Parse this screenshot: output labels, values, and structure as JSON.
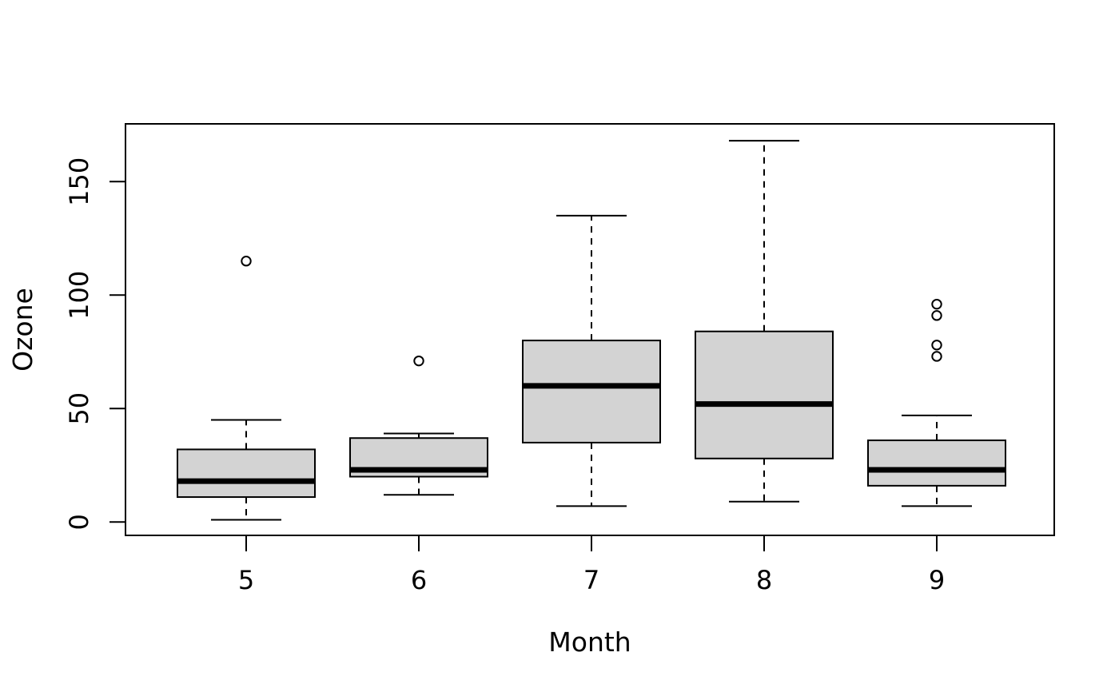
{
  "chart_data": {
    "type": "boxplot",
    "title": "",
    "xlabel": "Month",
    "ylabel": "Ozone",
    "categories": [
      "5",
      "6",
      "7",
      "8",
      "9"
    ],
    "y_ticks": [
      0,
      50,
      100,
      150
    ],
    "ylim": [
      -6,
      176
    ],
    "grid": false,
    "legend": "none",
    "colors": {
      "box_fill": "#d3d3d3",
      "stroke": "#000000",
      "background": "#ffffff"
    },
    "series": [
      {
        "category": "5",
        "lower_whisker": 1,
        "q1": 11,
        "median": 18,
        "q3": 32,
        "upper_whisker": 45,
        "outliers": [
          115
        ]
      },
      {
        "category": "6",
        "lower_whisker": 12,
        "q1": 20,
        "median": 23,
        "q3": 37,
        "upper_whisker": 39,
        "outliers": [
          71
        ]
      },
      {
        "category": "7",
        "lower_whisker": 7,
        "q1": 35,
        "median": 60,
        "q3": 80,
        "upper_whisker": 135,
        "outliers": []
      },
      {
        "category": "8",
        "lower_whisker": 9,
        "q1": 28,
        "median": 52,
        "q3": 84,
        "upper_whisker": 168,
        "outliers": []
      },
      {
        "category": "9",
        "lower_whisker": 7,
        "q1": 16,
        "median": 23,
        "q3": 36,
        "upper_whisker": 47,
        "outliers": [
          96,
          91,
          78,
          73
        ]
      }
    ]
  }
}
